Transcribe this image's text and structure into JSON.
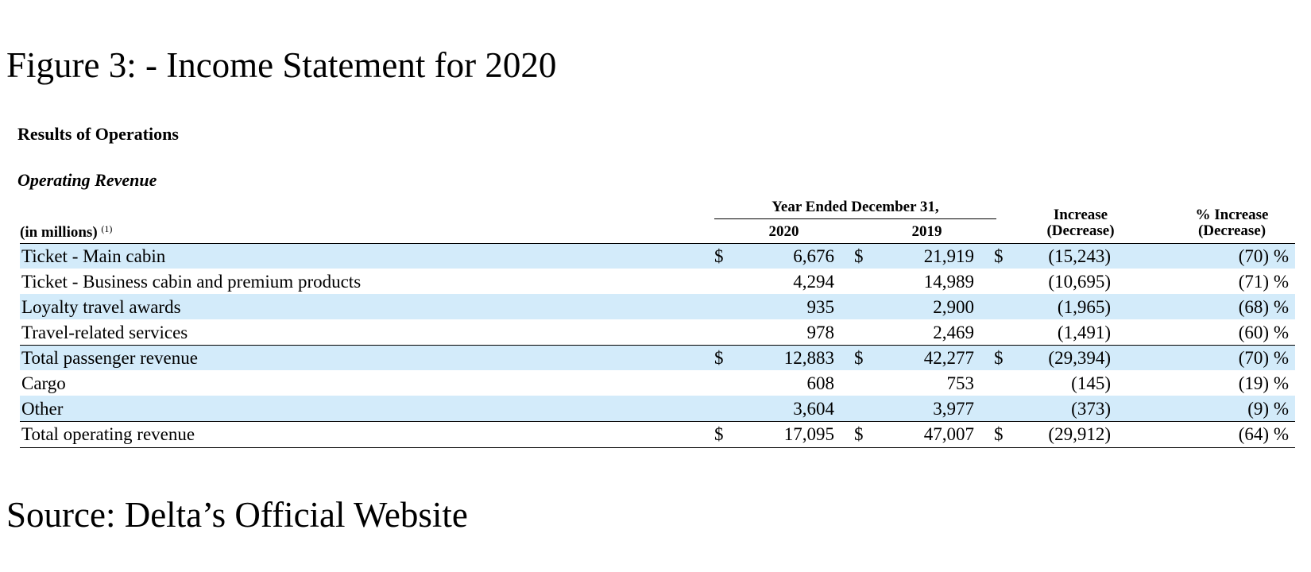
{
  "figure_title": "Figure 3: - Income Statement for 2020",
  "section_title": "Results of Operations",
  "subsection_title": "Operating Revenue",
  "source": "Source: Delta’s Official Website",
  "table": {
    "unit_label": "(in millions)",
    "unit_note": "(1)",
    "group_header": "Year Ended December 31,",
    "col_2020": "2020",
    "col_2019": "2019",
    "col_increase_l1": "Increase",
    "col_increase_l2": "(Decrease)",
    "col_pct_l1": "% Increase",
    "col_pct_l2": "(Decrease)",
    "rows": [
      {
        "label": "Ticket - Main cabin",
        "d1": "$",
        "v2020": "6,676",
        "d2": "$",
        "v2019": "21,919",
        "d3": "$",
        "inc": "(15,243)",
        "pct": "(70) %"
      },
      {
        "label": "Ticket - Business cabin and premium products",
        "d1": "",
        "v2020": "4,294",
        "d2": "",
        "v2019": "14,989",
        "d3": "",
        "inc": "(10,695)",
        "pct": "(71) %"
      },
      {
        "label": "Loyalty travel awards",
        "d1": "",
        "v2020": "935",
        "d2": "",
        "v2019": "2,900",
        "d3": "",
        "inc": "(1,965)",
        "pct": "(68) %"
      },
      {
        "label": "Travel-related services",
        "d1": "",
        "v2020": "978",
        "d2": "",
        "v2019": "2,469",
        "d3": "",
        "inc": "(1,491)",
        "pct": "(60) %"
      },
      {
        "label": "Total passenger revenue",
        "d1": "$",
        "v2020": "12,883",
        "d2": "$",
        "v2019": "42,277",
        "d3": "$",
        "inc": "(29,394)",
        "pct": "(70) %"
      },
      {
        "label": "Cargo",
        "d1": "",
        "v2020": "608",
        "d2": "",
        "v2019": "753",
        "d3": "",
        "inc": "(145)",
        "pct": "(19) %"
      },
      {
        "label": "Other",
        "d1": "",
        "v2020": "3,604",
        "d2": "",
        "v2019": "3,977",
        "d3": "",
        "inc": "(373)",
        "pct": "(9) %"
      },
      {
        "label": "Total operating revenue",
        "d1": "$",
        "v2020": "17,095",
        "d2": "$",
        "v2019": "47,007",
        "d3": "$",
        "inc": "(29,912)",
        "pct": "(64) %"
      }
    ]
  },
  "colors": {
    "row_shade": "#d3ebfa",
    "text": "#000000",
    "background": "#ffffff"
  }
}
